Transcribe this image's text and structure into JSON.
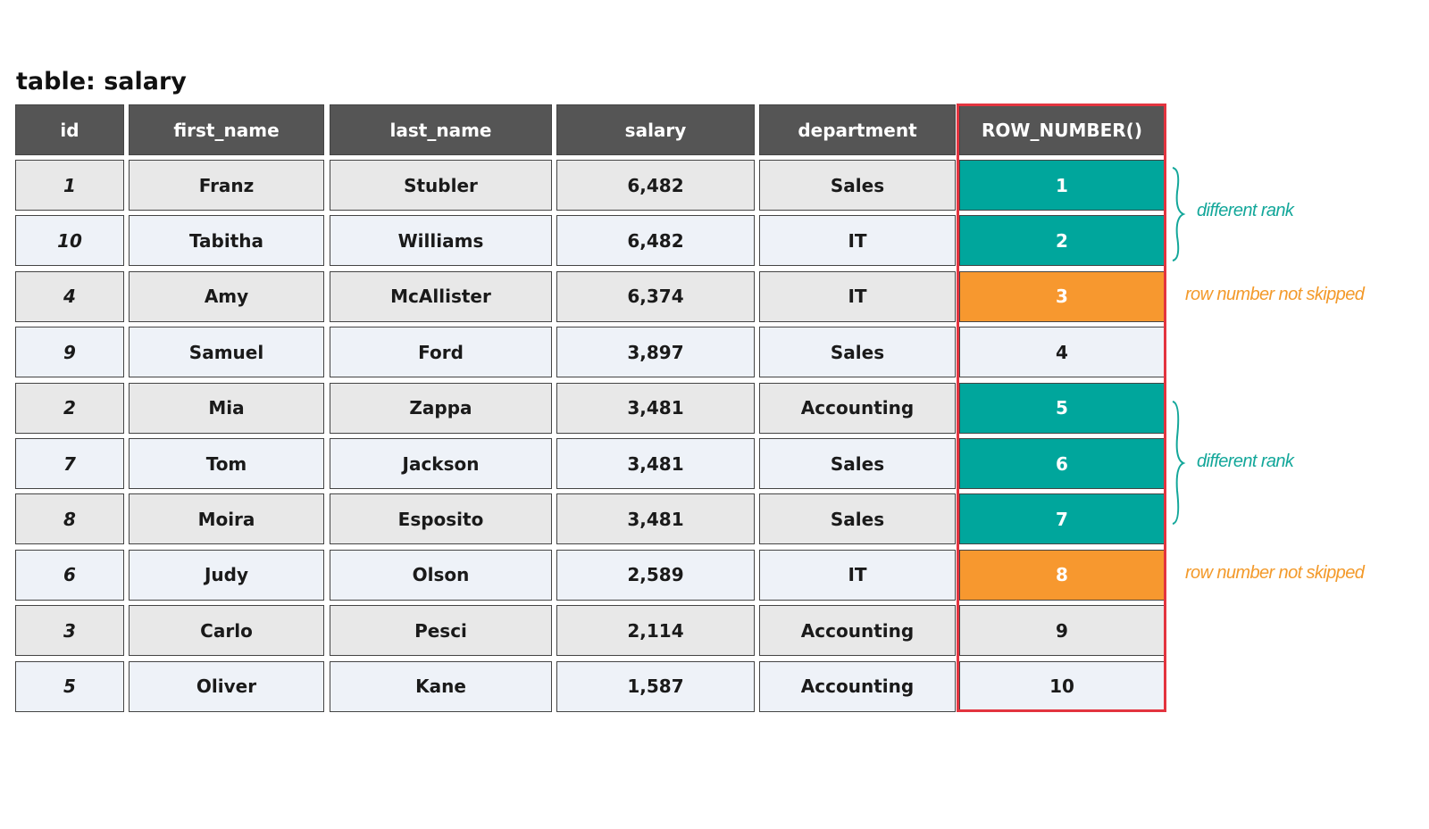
{
  "title": "table: salary",
  "table": {
    "headers": [
      "id",
      "first_name",
      "last_name",
      "salary",
      "department",
      "ROW_NUMBER()"
    ],
    "rows": [
      [
        "1",
        "Franz",
        "Stubler",
        "6,482",
        "Sales",
        "1"
      ],
      [
        "10",
        "Tabitha",
        "Williams",
        "6,482",
        "IT",
        "2"
      ],
      [
        "4",
        "Amy",
        "McAllister",
        "6,374",
        "IT",
        "3"
      ],
      [
        "9",
        "Samuel",
        "Ford",
        "3,897",
        "Sales",
        "4"
      ],
      [
        "2",
        "Mia",
        "Zappa",
        "3,481",
        "Accounting",
        "5"
      ],
      [
        "7",
        "Tom",
        "Jackson",
        "3,481",
        "Sales",
        "6"
      ],
      [
        "8",
        "Moira",
        "Esposito",
        "3,481",
        "Sales",
        "7"
      ],
      [
        "6",
        "Judy",
        "Olson",
        "2,589",
        "IT",
        "8"
      ],
      [
        "3",
        "Carlo",
        "Pesci",
        "2,114",
        "Accounting",
        "9"
      ],
      [
        "5",
        "Oliver",
        "Kane",
        "1,587",
        "Accounting",
        "10"
      ]
    ],
    "highlight_colors": [
      "#00a69c",
      "#00a69c",
      "#f7982f",
      null,
      "#00a69c",
      "#00a69c",
      "#00a69c",
      "#f7982f",
      null,
      null
    ]
  },
  "annotations": [
    "different rank",
    "row number not skipped",
    "different rank",
    "row number not skipped"
  ]
}
